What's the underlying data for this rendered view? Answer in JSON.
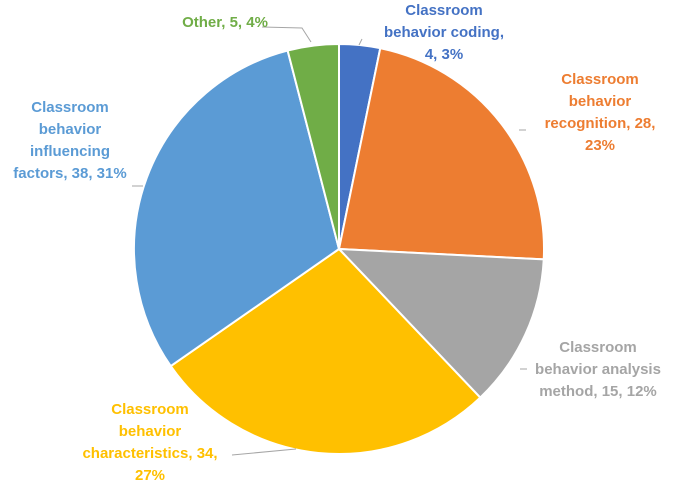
{
  "chart_data": {
    "type": "pie",
    "title": "",
    "slices": [
      {
        "name": "Classroom behavior coding",
        "value": 4,
        "percent": "3%",
        "color": "#4472C4",
        "label_lines": [
          "Classroom",
          "behavior coding,",
          "4, 3%"
        ]
      },
      {
        "name": "Classroom behavior recognition",
        "value": 28,
        "percent": "23%",
        "color": "#ED7D31",
        "label_lines": [
          "Classroom",
          "behavior",
          "recognition, 28,",
          "23%"
        ]
      },
      {
        "name": "Classroom behavior analysis method",
        "value": 15,
        "percent": "12%",
        "color": "#A5A5A5",
        "label_lines": [
          "Classroom",
          "behavior analysis",
          "method, 15, 12%"
        ]
      },
      {
        "name": "Classroom behavior characteristics",
        "value": 34,
        "percent": "27%",
        "color": "#FFC000",
        "label_lines": [
          "Classroom",
          "behavior",
          "characteristics, 34,",
          "27%"
        ]
      },
      {
        "name": "Classroom behavior influencing factors",
        "value": 38,
        "percent": "31%",
        "color": "#5B9BD5",
        "label_lines": [
          "Classroom",
          "behavior",
          "influencing",
          "factors, 38, 31%"
        ]
      },
      {
        "name": "Other",
        "value": 5,
        "percent": "4%",
        "color": "#70AD47",
        "label_lines": [
          "Other, 5, 4%"
        ]
      }
    ]
  }
}
